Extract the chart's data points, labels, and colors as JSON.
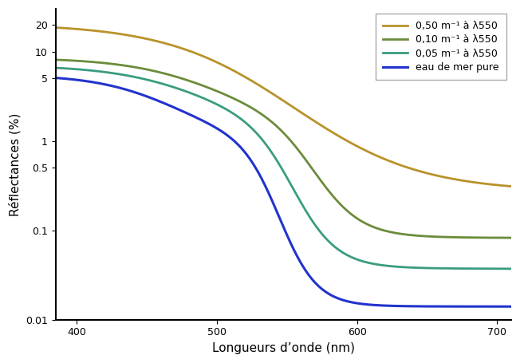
{
  "xlabel": "Longueurs d’onde (nm)",
  "ylabel": "Réflectances (%)",
  "xlim": [
    385,
    710
  ],
  "ylim_log": [
    0.01,
    30
  ],
  "yticks": [
    0.01,
    0.1,
    0.5,
    1,
    5,
    10,
    20
  ],
  "ytick_labels": [
    "0.01",
    "0.1",
    "0.5",
    "1",
    "5",
    "10",
    "20"
  ],
  "xticks": [
    400,
    500,
    600,
    700
  ],
  "legend_labels": [
    "0,50 m⁻¹ à λ550",
    "0,10 m⁻¹ à λ550",
    "0,05 m⁻¹ à λ550",
    "eau de mer pure"
  ],
  "line_colors": [
    "#b8922a",
    "#6b8c3a",
    "#3a9c80",
    "#2233cc"
  ],
  "background_color": "#ffffff",
  "grid_color": "#dddddd"
}
